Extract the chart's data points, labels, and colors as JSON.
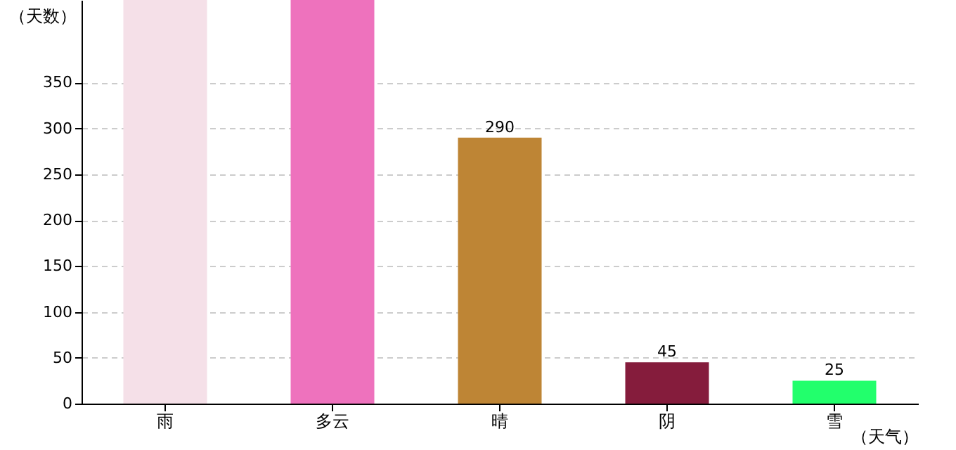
{
  "chart_data": {
    "type": "bar",
    "xlabel": "（天气）",
    "ylabel": "（天数）",
    "categories": [
      "雨",
      "多云",
      "晴",
      "阴",
      "雪"
    ],
    "values": [
      440,
      440,
      290,
      45,
      25
    ],
    "colors": [
      "#f5e0e8",
      "#ee72bd",
      "#be8535",
      "#851c3c",
      "#22ff6c"
    ],
    "value_labels": [
      null,
      null,
      "290",
      "45",
      "25"
    ],
    "ylim": [
      0,
      440
    ],
    "yticks": [
      0,
      50,
      100,
      150,
      200,
      250,
      300,
      350
    ],
    "grid": "y"
  }
}
